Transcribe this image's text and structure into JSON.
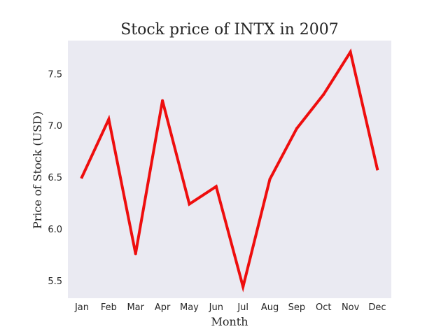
{
  "chart_data": {
    "type": "line",
    "title": "Stock price of INTX in 2007",
    "xlabel": "Month",
    "ylabel": "Price of Stock (USD)",
    "categories": [
      "Jan",
      "Feb",
      "Mar",
      "Apr",
      "May",
      "Jun",
      "Jul",
      "Aug",
      "Sep",
      "Oct",
      "Nov",
      "Dec"
    ],
    "series": [
      {
        "values": [
          6.5,
          7.06,
          5.76,
          7.24,
          6.24,
          6.41,
          5.44,
          6.48,
          6.97,
          7.3,
          7.71,
          6.58
        ],
        "color": "#ee0e0e"
      }
    ],
    "yticks": [
      5.5,
      6.0,
      6.5,
      7.0,
      7.5
    ],
    "ytick_labels": [
      "5.5",
      "6.0",
      "6.5",
      "7.0",
      "7.5"
    ],
    "ylim": [
      5.33,
      7.82
    ],
    "grid": false,
    "background": "#eaeaf2"
  }
}
